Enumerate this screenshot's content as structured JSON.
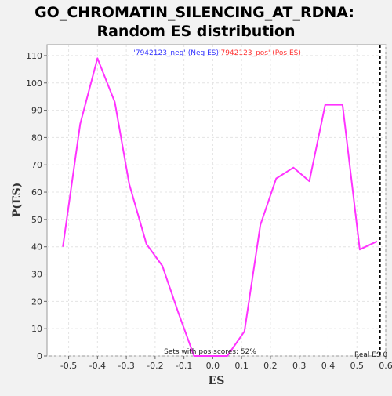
{
  "chart_data": {
    "type": "line",
    "title_line1": "GO_CHROMATIN_SILENCING_AT_RDNA:",
    "title_line2": "Random ES distribution",
    "xlabel": "ES",
    "ylabel": "P(ES)",
    "xlim": [
      -0.575,
      0.6
    ],
    "ylim": [
      0,
      114
    ],
    "xticks": [
      -0.5,
      -0.4,
      -0.3,
      -0.2,
      -0.1,
      0.0,
      0.1,
      0.2,
      0.3,
      0.4,
      0.5,
      0.6
    ],
    "xtick_labels": [
      "-0.5",
      "-0.4",
      "-0.3",
      "-0.2",
      "-0.1",
      "0.0",
      "0.1",
      "0.2",
      "0.3",
      "0.4",
      "0.5",
      "0.6"
    ],
    "yticks": [
      0,
      10,
      20,
      30,
      40,
      50,
      60,
      70,
      80,
      90,
      100,
      110
    ],
    "ytick_labels": [
      "0",
      "10",
      "20",
      "30",
      "40",
      "50",
      "60",
      "70",
      "80",
      "90",
      "100",
      "110"
    ],
    "grid": true,
    "legend": {
      "placement": "top-center",
      "entries": [
        {
          "text": "'7942123_neg' (Neg ES)",
          "color": "#3333ff"
        },
        {
          "text": "'7942123_pos' (Pos ES)",
          "color": "#ff3333"
        }
      ]
    },
    "series": [
      {
        "color": "#ff33ff",
        "x": [
          -0.52,
          -0.46,
          -0.4,
          -0.34,
          -0.29,
          -0.23,
          -0.175,
          -0.12,
          -0.065,
          -0.01,
          0.05,
          0.11,
          0.165,
          0.22,
          0.28,
          0.335,
          0.39,
          0.45,
          0.51,
          0.57
        ],
        "y": [
          40,
          85,
          109,
          93,
          63,
          41,
          33,
          16,
          0,
          0,
          0,
          9,
          48,
          65,
          69,
          64,
          92,
          92,
          39,
          42
        ]
      }
    ],
    "real_es": {
      "x": 0.58,
      "label": "Real ES 0",
      "color": "#000000"
    },
    "annotation": "Sets with pos scores: 52%"
  }
}
